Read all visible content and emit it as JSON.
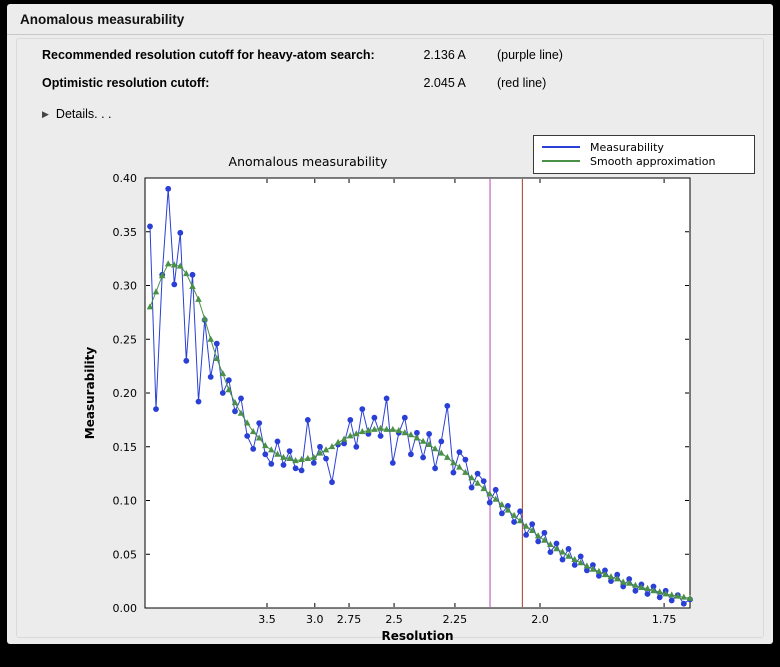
{
  "window": {
    "title": "Anomalous measurability"
  },
  "info": {
    "recommended": {
      "label": "Recommended resolution cutoff for heavy-atom search:",
      "value": "2.136 A",
      "note": "(purple line)"
    },
    "optimistic": {
      "label": "Optimistic resolution cutoff:",
      "value": "2.045 A",
      "note": "(red line)"
    }
  },
  "details": {
    "label": "Details. . ."
  },
  "chart_data": {
    "type": "line",
    "title": "Anomalous measurability",
    "xlabel": "Resolution",
    "ylabel": "Measurability",
    "legend_position": "upper right",
    "x_axis": {
      "scale": "inverse_resolution_squared",
      "range_s": [
        0.0064,
        0.3425
      ],
      "ticks": [
        {
          "d": 3.5,
          "label": "3.5"
        },
        {
          "d": 3.0,
          "label": "3.0"
        },
        {
          "d": 2.75,
          "label": "2.75"
        },
        {
          "d": 2.5,
          "label": "2.5"
        },
        {
          "d": 2.25,
          "label": "2.25"
        },
        {
          "d": 2.0,
          "label": "2.0"
        },
        {
          "d": 1.75,
          "label": "1.75"
        }
      ]
    },
    "y_axis": {
      "range": [
        0.0,
        0.4
      ],
      "ticks": [
        "0.00",
        "0.05",
        "0.10",
        "0.15",
        "0.20",
        "0.25",
        "0.30",
        "0.35",
        "0.40"
      ]
    },
    "x_s": [
      0.0095,
      0.0132,
      0.017,
      0.0207,
      0.0245,
      0.0282,
      0.0319,
      0.0357,
      0.0394,
      0.0432,
      0.0469,
      0.0507,
      0.0544,
      0.0581,
      0.0619,
      0.0656,
      0.0694,
      0.0731,
      0.0768,
      0.0806,
      0.0843,
      0.0881,
      0.0918,
      0.0956,
      0.0993,
      0.103,
      0.1068,
      0.1105,
      0.1143,
      0.118,
      0.1217,
      0.1255,
      0.1292,
      0.133,
      0.1367,
      0.1404,
      0.1442,
      0.1479,
      0.1517,
      0.1554,
      0.1592,
      0.1629,
      0.1666,
      0.1704,
      0.1741,
      0.1779,
      0.1816,
      0.1853,
      0.1891,
      0.1928,
      0.1966,
      0.2003,
      0.204,
      0.2078,
      0.2115,
      0.2153,
      0.219,
      0.2227,
      0.2265,
      0.2302,
      0.234,
      0.2377,
      0.2414,
      0.2452,
      0.2489,
      0.2527,
      0.2564,
      0.2602,
      0.2639,
      0.2676,
      0.2714,
      0.2751,
      0.2789,
      0.2826,
      0.2863,
      0.2901,
      0.2938,
      0.2976,
      0.3013,
      0.305,
      0.3088,
      0.3125,
      0.3163,
      0.32,
      0.3238,
      0.3275,
      0.3312,
      0.335,
      0.3387,
      0.3425
    ],
    "series": [
      {
        "name": "Measurability",
        "color": "#2a3fd6",
        "marker": "circle",
        "values": [
          0.355,
          0.185,
          0.31,
          0.39,
          0.301,
          0.349,
          0.23,
          0.31,
          0.192,
          0.268,
          0.215,
          0.246,
          0.2,
          0.212,
          0.183,
          0.195,
          0.16,
          0.148,
          0.172,
          0.143,
          0.134,
          0.155,
          0.133,
          0.146,
          0.13,
          0.128,
          0.175,
          0.135,
          0.15,
          0.139,
          0.117,
          0.152,
          0.153,
          0.175,
          0.15,
          0.185,
          0.162,
          0.177,
          0.16,
          0.195,
          0.135,
          0.163,
          0.177,
          0.143,
          0.163,
          0.14,
          0.162,
          0.13,
          0.155,
          0.188,
          0.126,
          0.145,
          0.138,
          0.112,
          0.125,
          0.118,
          0.098,
          0.11,
          0.088,
          0.095,
          0.08,
          0.09,
          0.068,
          0.078,
          0.062,
          0.07,
          0.052,
          0.06,
          0.045,
          0.055,
          0.04,
          0.048,
          0.035,
          0.04,
          0.03,
          0.035,
          0.025,
          0.031,
          0.02,
          0.027,
          0.016,
          0.022,
          0.013,
          0.02,
          0.01,
          0.016,
          0.007,
          0.012,
          0.004,
          0.008
        ]
      },
      {
        "name": "Smooth approximation",
        "color": "#4a9147",
        "marker": "triangle",
        "values": [
          0.28,
          0.294,
          0.309,
          0.32,
          0.319,
          0.318,
          0.311,
          0.299,
          0.287,
          0.269,
          0.25,
          0.232,
          0.218,
          0.203,
          0.191,
          0.181,
          0.172,
          0.164,
          0.158,
          0.151,
          0.147,
          0.143,
          0.14,
          0.139,
          0.137,
          0.138,
          0.139,
          0.14,
          0.144,
          0.147,
          0.15,
          0.154,
          0.157,
          0.16,
          0.162,
          0.164,
          0.165,
          0.166,
          0.167,
          0.166,
          0.166,
          0.165,
          0.163,
          0.161,
          0.158,
          0.155,
          0.152,
          0.148,
          0.144,
          0.14,
          0.135,
          0.131,
          0.126,
          0.121,
          0.116,
          0.111,
          0.106,
          0.101,
          0.096,
          0.091,
          0.086,
          0.081,
          0.076,
          0.072,
          0.067,
          0.063,
          0.059,
          0.055,
          0.052,
          0.048,
          0.045,
          0.042,
          0.039,
          0.036,
          0.034,
          0.031,
          0.029,
          0.027,
          0.024,
          0.023,
          0.021,
          0.019,
          0.018,
          0.016,
          0.015,
          0.013,
          0.012,
          0.011,
          0.01,
          0.009
        ]
      }
    ],
    "vlines": [
      {
        "resolution": 2.136,
        "color": "#bb44bb",
        "note": "purple line"
      },
      {
        "resolution": 2.045,
        "color": "#a63a2a",
        "note": "red line"
      }
    ]
  }
}
